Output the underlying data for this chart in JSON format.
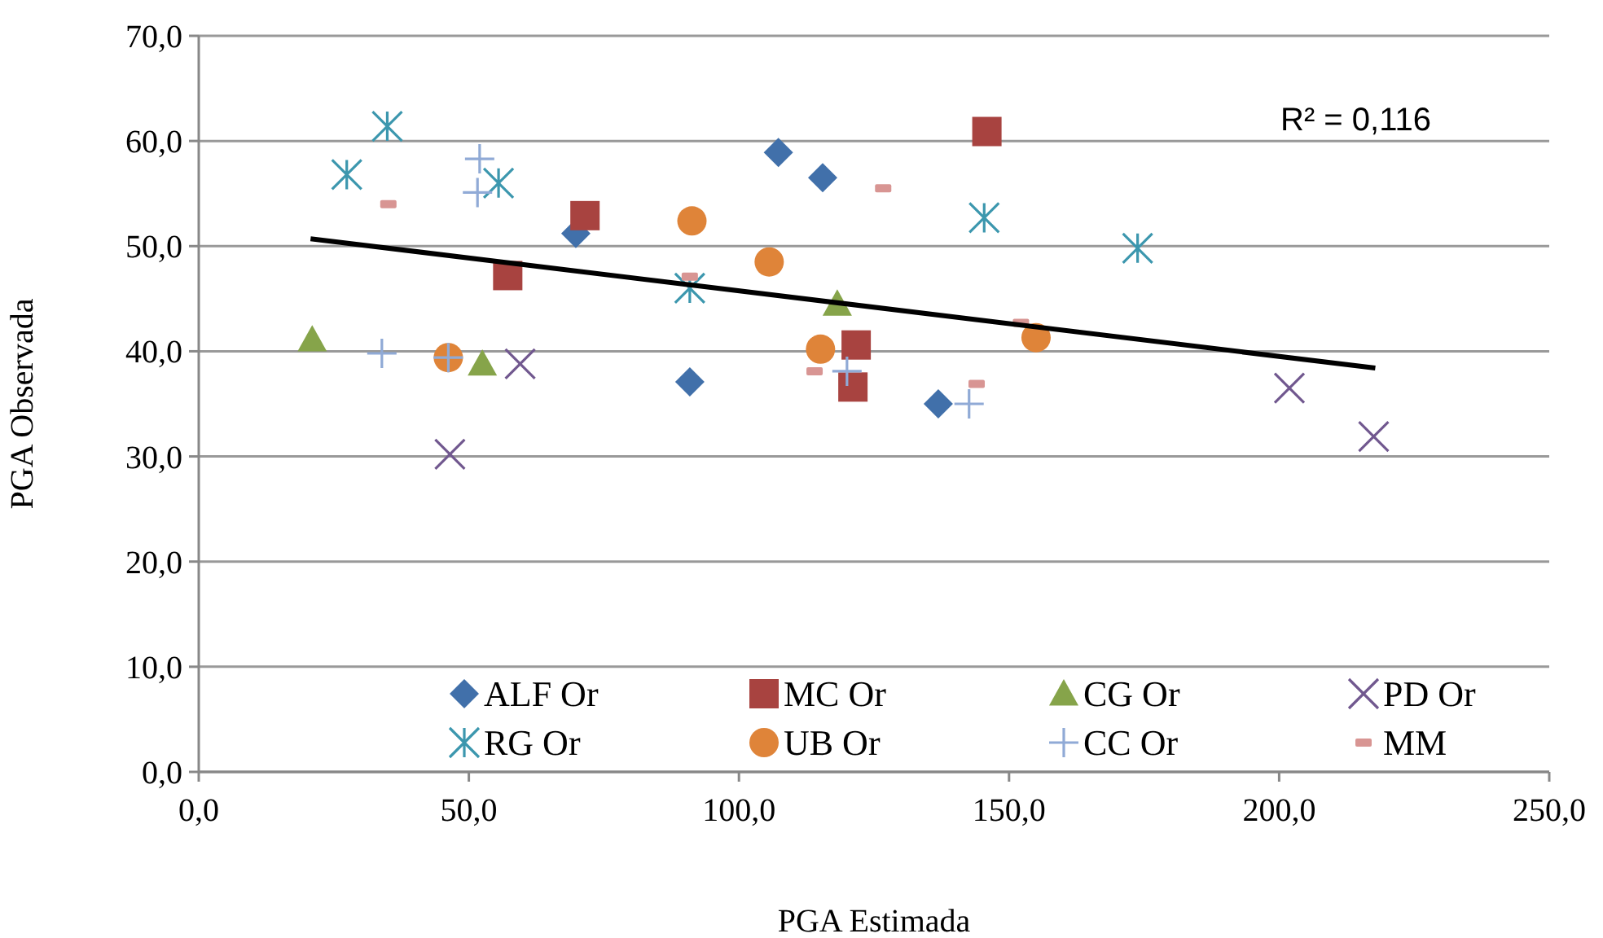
{
  "chart_data": {
    "type": "scatter",
    "xlabel": "PGA Estimada",
    "ylabel": "PGA Observada",
    "xlim": [
      0,
      250
    ],
    "ylim": [
      0,
      70
    ],
    "xticks": [
      {
        "value": 0,
        "label": "0,0"
      },
      {
        "value": 50,
        "label": "50,0"
      },
      {
        "value": 100,
        "label": "100,0"
      },
      {
        "value": 150,
        "label": "150,0"
      },
      {
        "value": 200,
        "label": "200,0"
      },
      {
        "value": 250,
        "label": "250,0"
      }
    ],
    "yticks": [
      {
        "value": 0,
        "label": "0,0"
      },
      {
        "value": 10,
        "label": "10,0"
      },
      {
        "value": 20,
        "label": "20,0"
      },
      {
        "value": 30,
        "label": "30,0"
      },
      {
        "value": 40,
        "label": "40,0"
      },
      {
        "value": 50,
        "label": "50,0"
      },
      {
        "value": 60,
        "label": "60,0"
      },
      {
        "value": 70,
        "label": "70,0"
      }
    ],
    "grid": "y",
    "legend": "bottom",
    "annotations": [
      "R² = 0,116"
    ],
    "series": [
      {
        "name": "ALF Or",
        "color": "#4170aa",
        "x": [
          69.8,
          107.3,
          115.5,
          90.9,
          136.9
        ],
        "values": [
          51.2,
          58.9,
          56.5,
          37.1,
          35.0
        ]
      },
      {
        "name": "MC Or",
        "color": "#a84340",
        "x": [
          71.5,
          57.2,
          145.9,
          121.7,
          121.1
        ],
        "values": [
          52.9,
          47.2,
          60.9,
          40.6,
          36.6
        ]
      },
      {
        "name": "CG Or",
        "color": "#86a44a",
        "x": [
          21.0,
          52.5,
          118.2
        ],
        "values": [
          41.1,
          38.8,
          44.5
        ]
      },
      {
        "name": "PD Or",
        "color": "#71588f",
        "x": [
          59.5,
          46.5,
          201.9,
          217.5
        ],
        "values": [
          38.8,
          30.2,
          36.5,
          31.9
        ]
      },
      {
        "name": "RG Or",
        "color": "#3c97ae",
        "x": [
          34.9,
          27.4,
          55.5,
          90.9,
          145.4,
          173.8
        ],
        "values": [
          61.4,
          56.8,
          56.0,
          46.0,
          52.7,
          49.8
        ]
      },
      {
        "name": "UB Or",
        "color": "#df8439",
        "x": [
          91.3,
          105.6,
          46.2,
          115.1,
          155.0
        ],
        "values": [
          52.4,
          48.5,
          39.4,
          40.2,
          41.3
        ]
      },
      {
        "name": "CC Or",
        "color": "#90aad6",
        "x": [
          52.0,
          51.6,
          33.9,
          46.2,
          120.0,
          142.6
        ],
        "values": [
          58.3,
          55.1,
          39.8,
          39.4,
          38.1,
          35.0
        ]
      },
      {
        "name": "MM",
        "color": "#d89593",
        "x": [
          35.1,
          90.9,
          114.0,
          126.7,
          144.0,
          152.2
        ],
        "values": [
          54.0,
          47.1,
          38.1,
          55.5,
          36.9,
          42.7
        ]
      },
      {
        "type": "line",
        "color": "#000000",
        "marker": "none",
        "x": [
          20.7,
          217.8
        ],
        "values": [
          50.7,
          38.4
        ]
      }
    ]
  }
}
